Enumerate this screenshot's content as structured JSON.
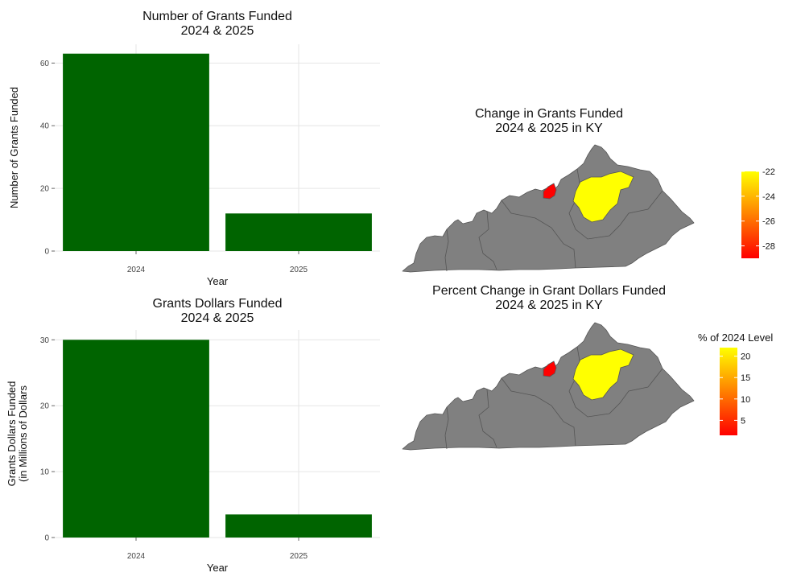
{
  "colors": {
    "bar": "#006400",
    "region": "#808080",
    "border": "#555555",
    "low": "#ff0000",
    "high": "#ffff00"
  },
  "chart_data": [
    {
      "type": "bar",
      "title": [
        "Number of Grants Funded",
        "2024 & 2025"
      ],
      "xlabel": "Year",
      "ylabel": [
        "Number of Grants Funded"
      ],
      "categories": [
        "2024",
        "2025"
      ],
      "values": [
        63,
        12
      ],
      "ylim": [
        0,
        66
      ],
      "yticks": [
        0,
        20,
        40,
        60
      ],
      "grid": true
    },
    {
      "type": "bar",
      "title": [
        "Grants Dollars Funded",
        "2024 & 2025"
      ],
      "xlabel": "Year",
      "ylabel": [
        "Grants Dollars Funded",
        "(in Millions of Dollars"
      ],
      "categories": [
        "2024",
        "2025"
      ],
      "values": [
        30,
        3.5
      ],
      "ylim": [
        0,
        31.5
      ],
      "yticks": [
        0,
        10,
        20,
        30
      ],
      "grid": true
    },
    {
      "type": "map",
      "title": [
        "Change in Grants Funded",
        "2024 & 2025 in KY"
      ],
      "legend_title": "",
      "legend_range": [
        -29,
        -22
      ],
      "legend_ticks": [
        -22,
        -24,
        -26,
        -28
      ],
      "highlighted_regions": [
        {
          "region": "small northwestern region",
          "value": -29,
          "color": "#ff0000"
        },
        {
          "region": "central region",
          "value": -22,
          "color": "#ffff00"
        }
      ]
    },
    {
      "type": "map",
      "title": [
        "Percent Change in Grant Dollars Funded",
        "2024 & 2025 in KY"
      ],
      "legend_title": "% of 2024 Level",
      "legend_range": [
        1.5,
        22
      ],
      "legend_ticks": [
        20,
        15,
        10,
        5
      ],
      "highlighted_regions": [
        {
          "region": "small northwestern region",
          "value": 1.5,
          "color": "#ff0000"
        },
        {
          "region": "central region",
          "value": 22,
          "color": "#ffff00"
        }
      ]
    }
  ]
}
